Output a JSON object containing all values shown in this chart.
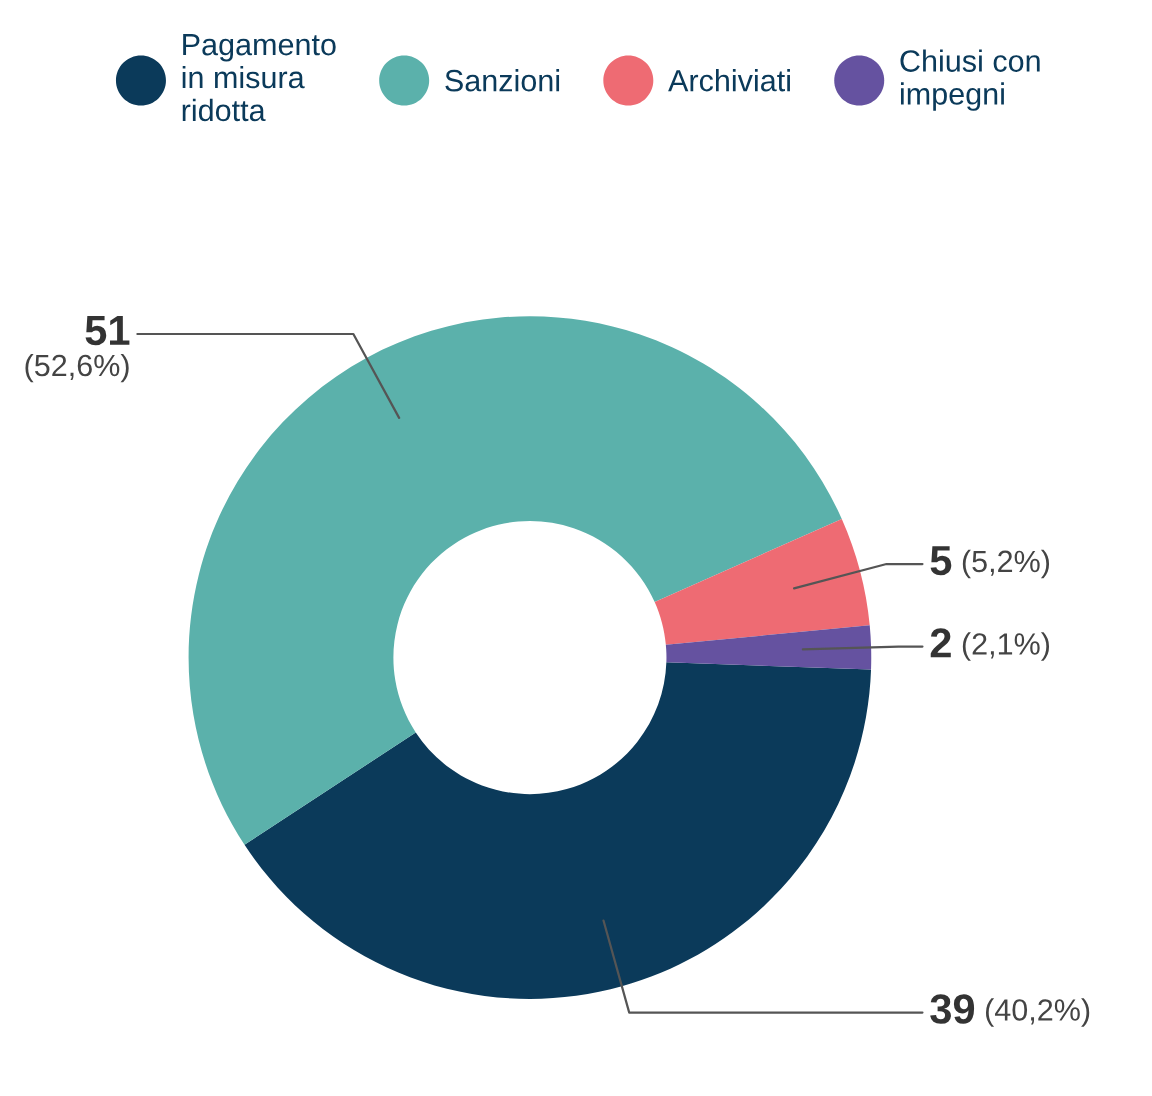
{
  "chart_data": {
    "type": "donut",
    "categories": [
      "Pagamento\nin misura\nridotta",
      "Sanzioni",
      "Archiviati",
      "Chiusi con\nimpegni"
    ],
    "values": [
      39,
      51,
      5,
      2
    ],
    "colors": [
      "#0b3a5a",
      "#5bb1ab",
      "#ee6b73",
      "#6552a0"
    ],
    "value_labels": [
      "39 (40,2%)",
      "51 (52,6%)",
      "5 (5,2%)",
      "2 (2,1%)"
    ],
    "legend": "top"
  }
}
